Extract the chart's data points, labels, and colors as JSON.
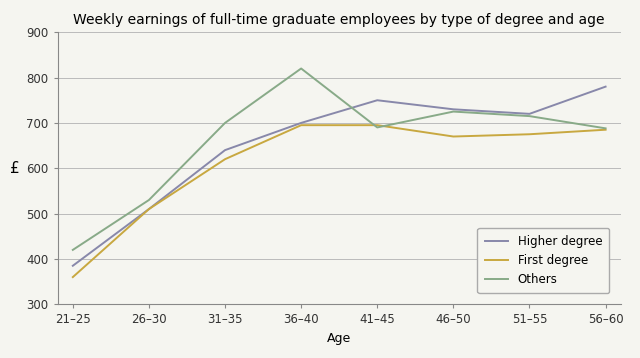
{
  "title": "Weekly earnings of full-time graduate employees by type of degree and age",
  "xlabel": "Age",
  "ylabel": "£",
  "age_groups": [
    "21–25",
    "26–30",
    "31–35",
    "36–40",
    "41–45",
    "46–50",
    "51–55",
    "56–60"
  ],
  "series": [
    {
      "label": "Higher degree",
      "color": "#8888aa",
      "values": [
        385,
        510,
        640,
        700,
        750,
        730,
        720,
        780
      ]
    },
    {
      "label": "First degree",
      "color": "#c8a840",
      "values": [
        360,
        510,
        620,
        695,
        695,
        670,
        675,
        685
      ]
    },
    {
      "label": "Others",
      "color": "#88aa88",
      "values": [
        420,
        530,
        700,
        820,
        690,
        725,
        715,
        688
      ]
    }
  ],
  "ylim": [
    300,
    900
  ],
  "yticks": [
    300,
    400,
    500,
    600,
    700,
    800,
    900
  ],
  "background_color": "#f5f5f0",
  "plot_bg_color": "#f5f5f0",
  "grid_color": "#bbbbbb",
  "title_fontsize": 10,
  "axis_label_fontsize": 9,
  "tick_fontsize": 8.5,
  "legend_fontsize": 8.5,
  "line_width": 1.4
}
